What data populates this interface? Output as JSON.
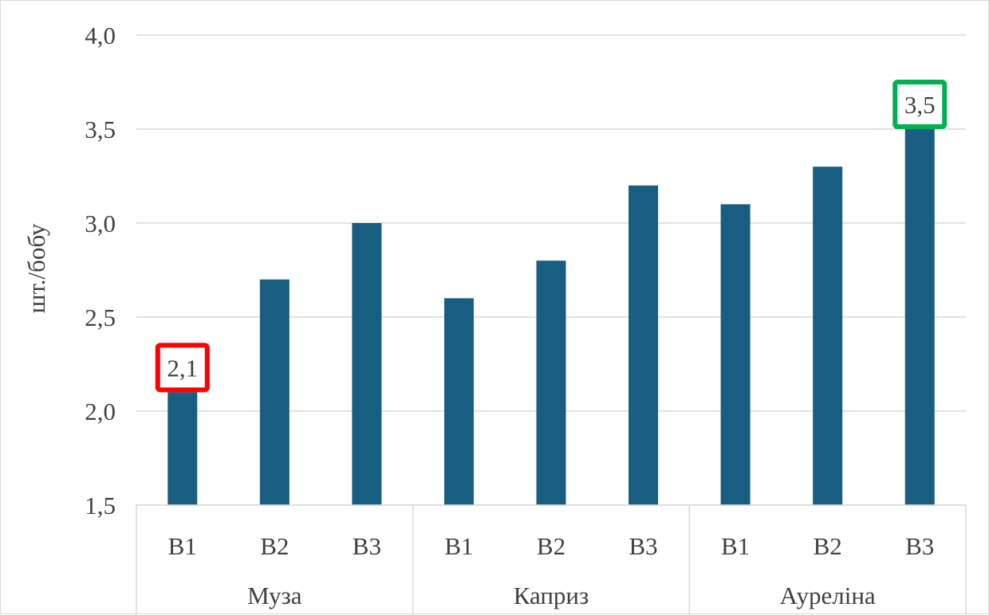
{
  "chart_data": {
    "type": "bar",
    "title": "",
    "ylabel": "шт./бобу",
    "xlabel": "",
    "ylim": [
      1.5,
      4.0
    ],
    "y_ticks": [
      "1,5",
      "2,0",
      "2,5",
      "3,0",
      "3,5",
      "4,0"
    ],
    "y_tick_values": [
      1.5,
      2.0,
      2.5,
      3.0,
      3.5,
      4.0
    ],
    "grid": true,
    "bar_color": "#175e80",
    "groups": [
      {
        "name": "Муза",
        "categories": [
          "B1",
          "B2",
          "B3"
        ],
        "values": [
          2.1,
          2.7,
          3.0
        ]
      },
      {
        "name": "Каприз",
        "categories": [
          "B1",
          "B2",
          "B3"
        ],
        "values": [
          2.6,
          2.8,
          3.2
        ]
      },
      {
        "name": "Ауреліна",
        "categories": [
          "B1",
          "B2",
          "B3"
        ],
        "values": [
          3.1,
          3.3,
          3.5
        ]
      }
    ],
    "annotations": [
      {
        "group": 0,
        "index": 0,
        "text": "2,1",
        "box_color": "#ff0000"
      },
      {
        "group": 2,
        "index": 2,
        "text": "3,5",
        "box_color": "#00b050"
      }
    ]
  }
}
